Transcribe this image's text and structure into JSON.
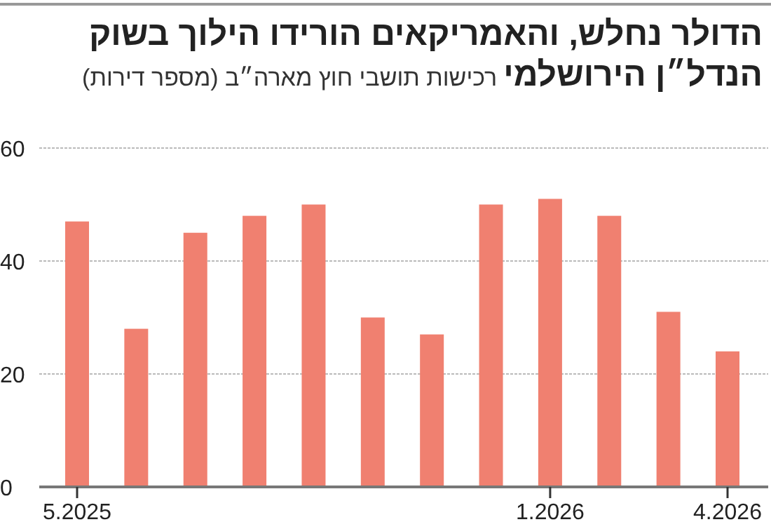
{
  "chart_data": {
    "type": "bar",
    "title": "הדולר נחלש, והאמריקאים הורידו הילוך בשוק הנדל״ן הירושלמי",
    "subtitle": "רכישות תושבי חוץ מארה״ב (מספר דירות)",
    "categories": [
      "5.2025",
      null,
      null,
      null,
      null,
      null,
      null,
      null,
      "1.2026",
      null,
      null,
      "4.2026"
    ],
    "values": [
      47,
      28,
      45,
      48,
      50,
      30,
      27,
      50,
      51,
      48,
      31,
      24
    ],
    "color": "#f08070",
    "ylim": [
      0,
      60
    ],
    "yticks": [
      0,
      20,
      40,
      60
    ],
    "grid": "y"
  }
}
